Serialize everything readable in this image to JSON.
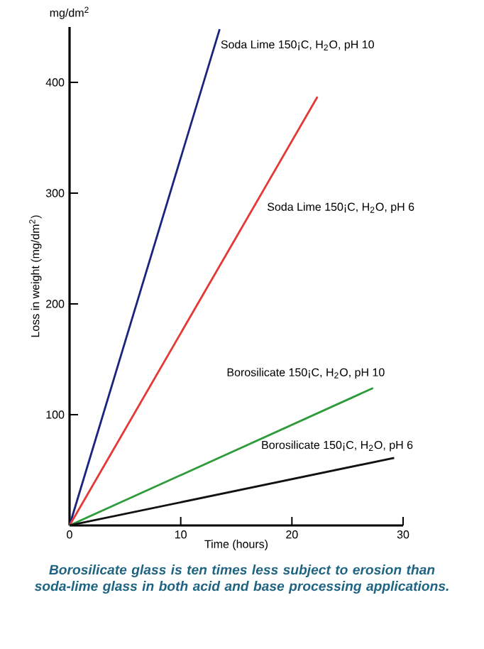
{
  "chart_data": {
    "type": "line",
    "xlabel": "Time (hours)",
    "ylabel": "Loss in weight (mg/dm$^{2}$)",
    "xlim": [
      0,
      30
    ],
    "ylim": [
      0,
      450
    ],
    "xticks": [
      0,
      10,
      20,
      30
    ],
    "yticks": [
      100,
      200,
      300,
      400
    ],
    "grid": false,
    "marker": "none",
    "line_style": "solid",
    "series": [
      {
        "name": "Soda Lime 150¡C, H$_{2}$O, pH 10",
        "color": "#1a237e",
        "x": [
          0,
          13.5
        ],
        "values": [
          0,
          448
        ]
      },
      {
        "name": "Soda Lime 150¡C, H$_{2}$O, pH 6",
        "color": "#e53935",
        "x": [
          0,
          22.3
        ],
        "values": [
          0,
          387
        ]
      },
      {
        "name": "Borosilicate 150¡C, H$_{2}$O, pH 10",
        "color": "#2e9b3a",
        "x": [
          0,
          27.3
        ],
        "values": [
          0,
          124
        ]
      },
      {
        "name": "Borosilicate 150¡C, H$_{2}$O, pH 6",
        "color": "#111111",
        "x": [
          0,
          29.2
        ],
        "values": [
          0,
          61
        ]
      }
    ],
    "annotations": [
      "mg/dm$^{2}$",
      "Borosilicate glass is ten times less subject to erosion than soda-lime glass in both acid and base processing applications."
    ]
  }
}
